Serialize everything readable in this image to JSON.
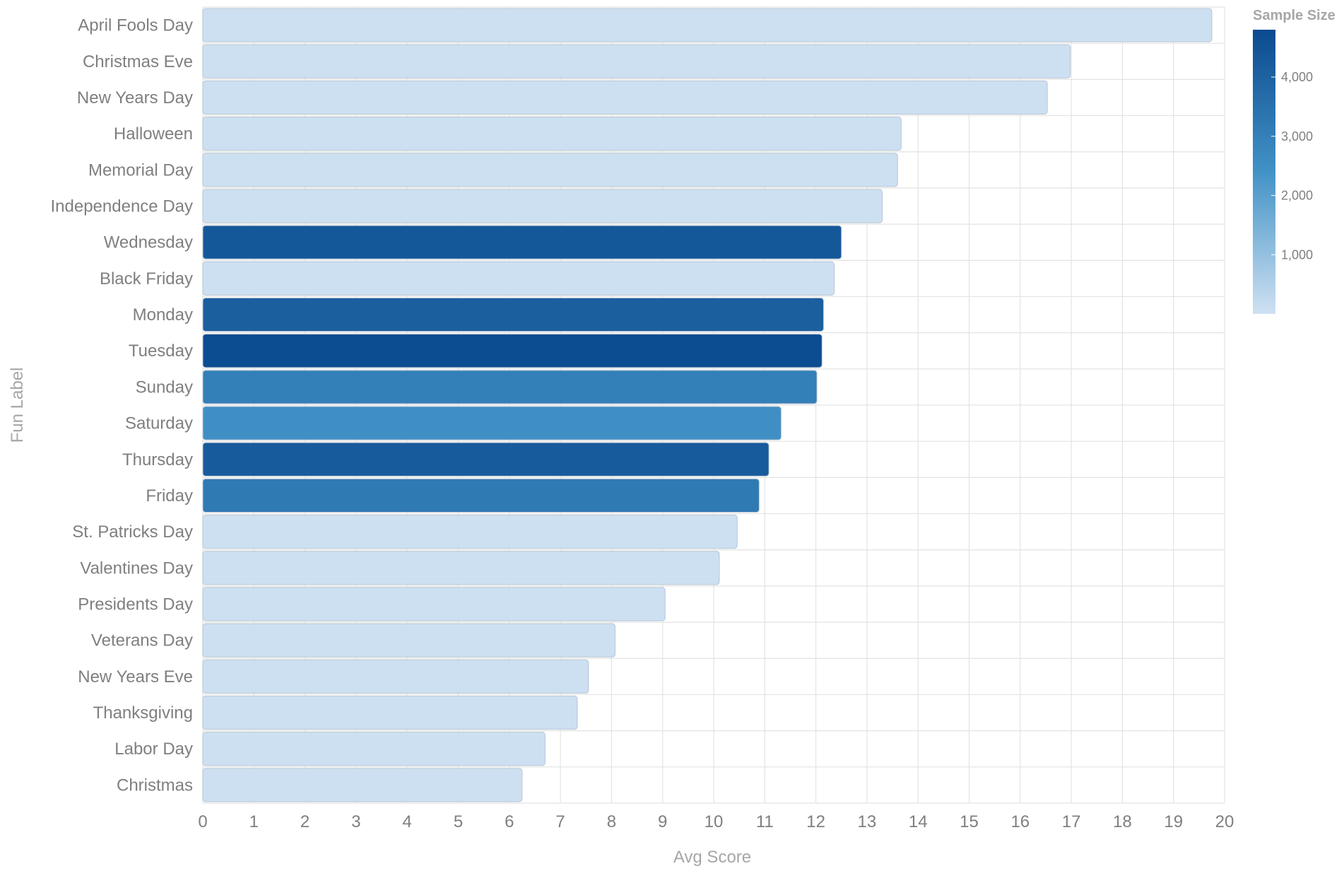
{
  "chart_data": {
    "type": "bar",
    "orientation": "horizontal",
    "xlabel": "Avg Score",
    "ylabel": "Fun Label",
    "xlim": [
      0,
      20
    ],
    "x_ticks": [
      0,
      1,
      2,
      3,
      4,
      5,
      6,
      7,
      8,
      9,
      10,
      11,
      12,
      13,
      14,
      15,
      16,
      17,
      18,
      19,
      20
    ],
    "grid": true,
    "categories": [
      "April Fools Day",
      "Christmas Eve",
      "New Years Day",
      "Halloween",
      "Memorial Day",
      "Independence Day",
      "Wednesday",
      "Black Friday",
      "Monday",
      "Tuesday",
      "Sunday",
      "Saturday",
      "Thursday",
      "Friday",
      "St. Patricks Day",
      "Valentines Day",
      "Presidents Day",
      "Veterans Day",
      "New Years Eve",
      "Thanksgiving",
      "Labor Day",
      "Christmas"
    ],
    "values": [
      19.75,
      16.98,
      16.53,
      13.67,
      13.6,
      13.3,
      12.5,
      12.36,
      12.15,
      12.12,
      12.02,
      11.32,
      11.08,
      10.89,
      10.46,
      10.11,
      9.05,
      8.07,
      7.55,
      7.33,
      6.7,
      6.25
    ],
    "color_values": [
      40,
      40,
      40,
      40,
      40,
      40,
      4350,
      40,
      4100,
      4750,
      3050,
      2500,
      4250,
      3200,
      40,
      40,
      40,
      40,
      40,
      40,
      40,
      40
    ],
    "legend": {
      "title": "Sample Size",
      "type": "colorbar",
      "placement": "top-right",
      "range": [
        0,
        4800
      ],
      "ticks": [
        1000,
        2000,
        3000,
        4000
      ],
      "tick_labels": [
        "1,000",
        "2,000",
        "3,000",
        "4,000"
      ],
      "color_low": "#cfe1f2",
      "color_high": "#0b4a8f"
    }
  }
}
